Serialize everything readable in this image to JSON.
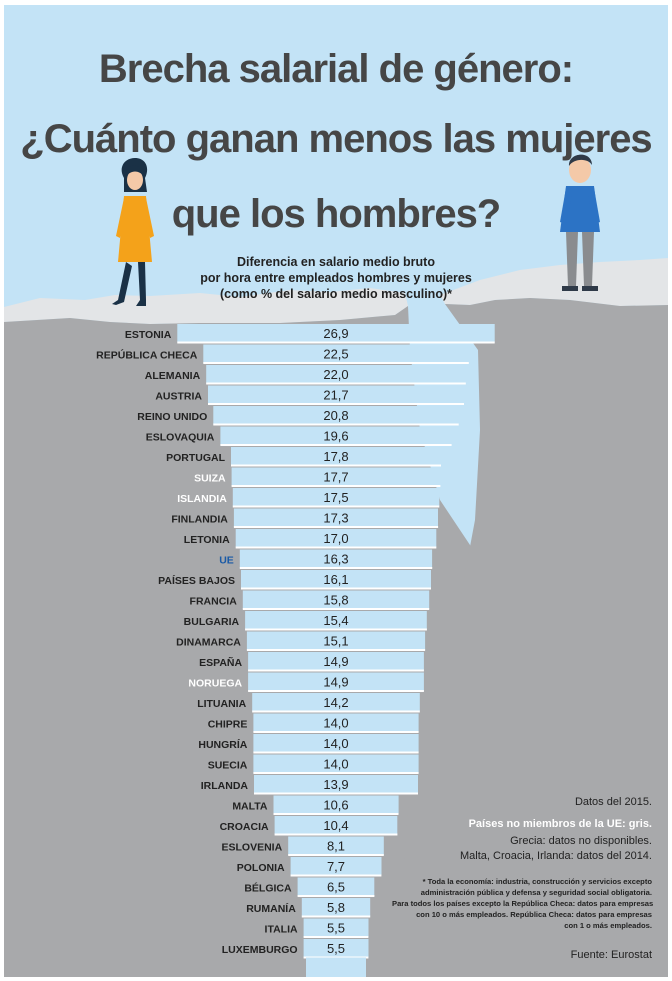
{
  "chart_data": {
    "type": "bar",
    "title_lines": [
      "Brecha salarial de género:",
      "¿Cuánto ganan menos las mujeres",
      "que los hombres?"
    ],
    "subtitle_lines": [
      "Diferencia en salario medio bruto",
      "por hora entre empleados hombres y mujeres",
      "(como % del salario medio masculino)*"
    ],
    "categories": [
      "ESTONIA",
      "REPÚBLICA CHECA",
      "ALEMANIA",
      "AUSTRIA",
      "REINO UNIDO",
      "ESLOVAQUIA",
      "PORTUGAL",
      "SUIZA",
      "ISLANDIA",
      "FINLANDIA",
      "LETONIA",
      "UE",
      "PAÍSES BAJOS",
      "FRANCIA",
      "BULGARIA",
      "DINAMARCA",
      "ESPAÑA",
      "NORUEGA",
      "LITUANIA",
      "CHIPRE",
      "HUNGRÍA",
      "SUECIA",
      "IRLANDA",
      "MALTA",
      "CROACIA",
      "ESLOVENIA",
      "POLONIA",
      "BÉLGICA",
      "RUMANÍA",
      "ITALIA",
      "LUXEMBURGO"
    ],
    "values": [
      26.9,
      22.5,
      22.0,
      21.7,
      20.8,
      19.6,
      17.8,
      17.7,
      17.5,
      17.3,
      17.0,
      16.3,
      16.1,
      15.8,
      15.4,
      15.1,
      14.9,
      14.9,
      14.2,
      14.0,
      14.0,
      14.0,
      13.9,
      10.6,
      10.4,
      8.1,
      7.7,
      6.5,
      5.8,
      5.5,
      5.5
    ],
    "value_labels": [
      "26,9",
      "22,5",
      "22,0",
      "21,7",
      "20,8",
      "19,6",
      "17,8",
      "17,7",
      "17,5",
      "17,3",
      "17,0",
      "16,3",
      "16,1",
      "15,8",
      "15,4",
      "15,1",
      "14,9",
      "14,9",
      "14,2",
      "14,0",
      "14,0",
      "14,0",
      "13,9",
      "10,6",
      "10,4",
      "8,1",
      "7,7",
      "6,5",
      "5,8",
      "5,5",
      "5,5"
    ],
    "label_colors": {
      "default": "#222222",
      "non_eu": "#ffffff",
      "eu": "#1a5aa6"
    },
    "non_eu_members": [
      "SUIZA",
      "ISLANDIA",
      "NORUEGA"
    ],
    "eu_average": "UE",
    "bar_color": "#c3e3f6",
    "notes": {
      "date": "Datos del 2015.",
      "non_eu": "Países no miembros de la UE: gris.",
      "greece": "Grecia: datos no disponibles.",
      "data_2014": "Malta, Croacia, Irlanda: datos del 2014.",
      "footnote": [
        "* Toda la economía: industria, construcción y servicios excepto",
        "administración pública y defensa y seguridad social obligatoria.",
        "Para todos los países excepto la República Checa: datos para empresas",
        "con 10 o más empleados. República Checa: datos para empresas",
        "con 1 o más empleados."
      ],
      "source": "Fuente: Eurostat"
    }
  }
}
